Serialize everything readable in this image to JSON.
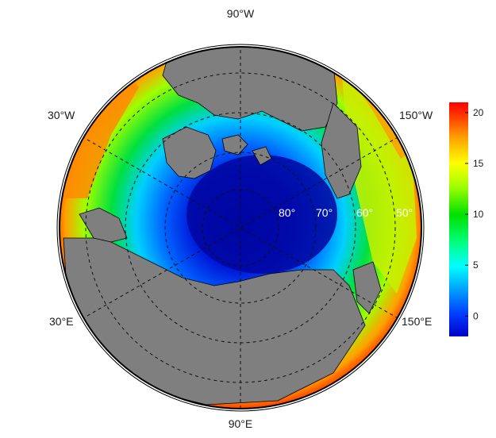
{
  "map": {
    "type": "polar-stereographic",
    "center": "North Pole",
    "colors": {
      "land": "#7f7f7f",
      "ocean_low": "#0010c0",
      "ocean_high": "#ff1a00",
      "outline": "#000000"
    }
  },
  "longitude_labels": {
    "top": "90°W",
    "bottom": "90°E",
    "upper_left": "30°W",
    "upper_right": "150°W",
    "lower_left": "30°E",
    "lower_right": "150°E"
  },
  "latitude_labels": [
    "80°",
    "70°",
    "60°",
    "50°"
  ],
  "colorbar": {
    "ticks": [
      "20",
      "15",
      "10",
      "5",
      "0"
    ],
    "min": -2,
    "max": 21,
    "stops": [
      "#0000c8",
      "#0040ff",
      "#00a0ff",
      "#00ffff",
      "#00ff80",
      "#00e000",
      "#a0ff00",
      "#ffff00",
      "#ffa000",
      "#ff3000",
      "#ff0000"
    ]
  }
}
